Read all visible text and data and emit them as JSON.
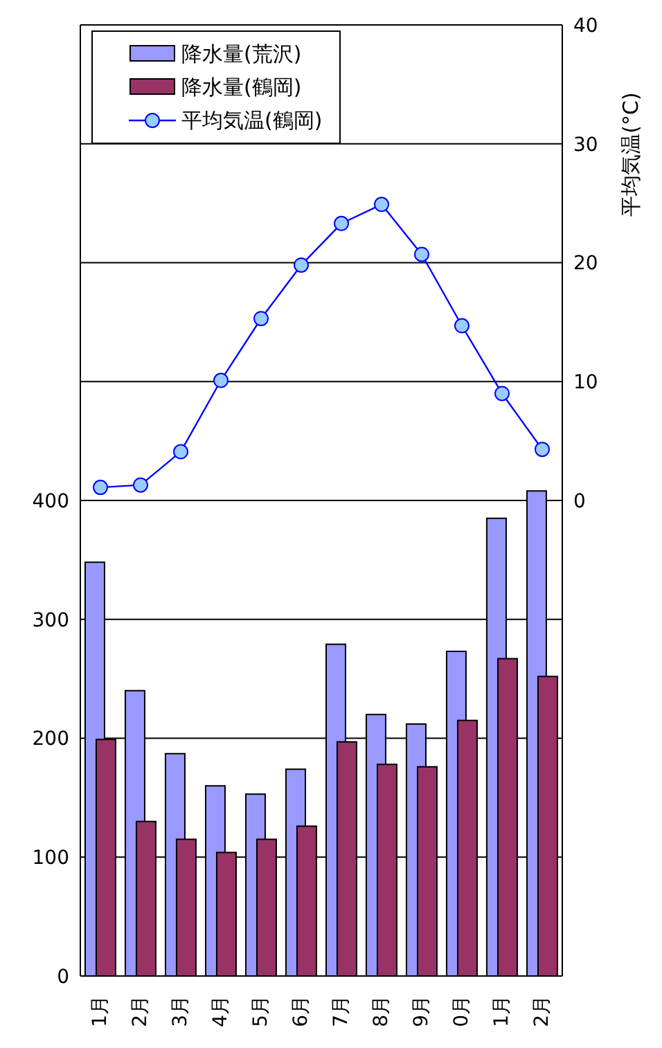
{
  "chart_data": {
    "type": "bar",
    "categories": [
      "1月",
      "2月",
      "3月",
      "4月",
      "5月",
      "6月",
      "7月",
      "8月",
      "9月",
      "0月",
      "1月",
      "2月"
    ],
    "series": [
      {
        "name": "降水量(荒沢)",
        "color": "#9999ff",
        "values": [
          348,
          240,
          187,
          160,
          153,
          174,
          279,
          220,
          212,
          273,
          385,
          408
        ]
      },
      {
        "name": "降水量(鶴岡)",
        "color": "#993366",
        "values": [
          199,
          130,
          115,
          104,
          115,
          126,
          197,
          178,
          176,
          215,
          267,
          252
        ]
      },
      {
        "name": "平均気温(鶴岡)",
        "type": "line",
        "axis": "y2",
        "color": "#0000ff",
        "marker": "circle",
        "values": [
          1.1,
          1.3,
          4.1,
          10.1,
          15.3,
          19.8,
          23.3,
          24.9,
          20.7,
          14.7,
          9.0,
          4.3
        ]
      }
    ],
    "y2label": "平均気温(°C)",
    "ylim": [
      0,
      800
    ],
    "yticks": [
      0,
      100,
      200,
      300,
      400,
      {
        "value": 500,
        "label": null
      },
      {
        "value": 600,
        "label": null
      },
      {
        "value": 700,
        "label": null
      },
      {
        "value": 800,
        "label": null
      }
    ],
    "y2lim": [
      -40,
      40
    ],
    "y2ticks": [
      0,
      10,
      20,
      30,
      40
    ],
    "grid": "y",
    "legend": "top left"
  }
}
